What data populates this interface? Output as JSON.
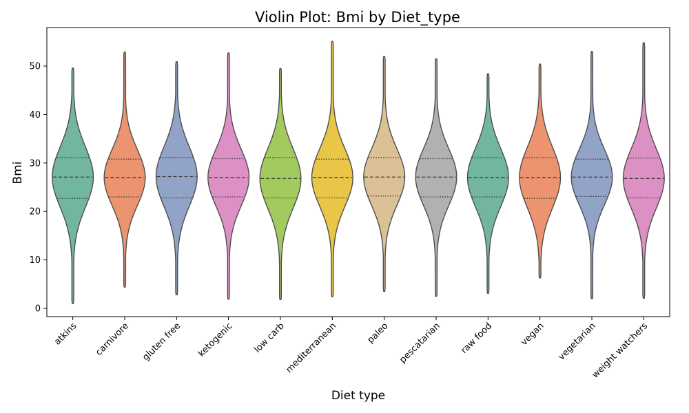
{
  "chart_data": {
    "type": "violin",
    "title": "Violin Plot: Bmi by Diet_type",
    "xlabel": "Diet type",
    "ylabel": "Bmi",
    "ylim": [
      -1.5,
      58
    ],
    "yticks": [
      0,
      10,
      20,
      30,
      40,
      50
    ],
    "grid": false,
    "legend": "none",
    "categories": [
      "atkins",
      "carnivore",
      "gluten free",
      "ketogenic",
      "low carb",
      "mediterranean",
      "paleo",
      "pescatarian",
      "raw food",
      "vegan",
      "vegetarian",
      "weight watchers"
    ],
    "colors": [
      "#72b69f",
      "#eb946f",
      "#92a3c8",
      "#dc90c3",
      "#a3ca5e",
      "#e9c648",
      "#dcc197",
      "#b1b1b1",
      "#72b69f",
      "#eb946f",
      "#92a3c8",
      "#dc90c3"
    ],
    "stats": [
      {
        "min": 1.0,
        "q1": 22.7,
        "median": 27.1,
        "q3": 31.1,
        "max": 49.6
      },
      {
        "min": 4.4,
        "q1": 23.0,
        "median": 27.0,
        "q3": 30.8,
        "max": 52.9
      },
      {
        "min": 2.8,
        "q1": 22.8,
        "median": 27.2,
        "q3": 31.1,
        "max": 50.9
      },
      {
        "min": 1.9,
        "q1": 23.0,
        "median": 27.0,
        "q3": 30.9,
        "max": 52.7
      },
      {
        "min": 1.8,
        "q1": 22.8,
        "median": 26.8,
        "q3": 31.1,
        "max": 49.5
      },
      {
        "min": 2.4,
        "q1": 22.8,
        "median": 27.0,
        "q3": 30.8,
        "max": 55.1
      },
      {
        "min": 3.5,
        "q1": 23.2,
        "median": 27.1,
        "q3": 31.1,
        "max": 52.0
      },
      {
        "min": 2.5,
        "q1": 23.0,
        "median": 27.1,
        "q3": 30.9,
        "max": 51.5
      },
      {
        "min": 3.1,
        "q1": 23.0,
        "median": 27.0,
        "q3": 31.1,
        "max": 48.4
      },
      {
        "min": 6.3,
        "q1": 22.7,
        "median": 27.0,
        "q3": 31.1,
        "max": 50.4
      },
      {
        "min": 2.0,
        "q1": 23.1,
        "median": 27.1,
        "q3": 30.8,
        "max": 53.0
      },
      {
        "min": 2.1,
        "q1": 22.8,
        "median": 26.8,
        "q3": 31.0,
        "max": 54.8
      }
    ]
  }
}
